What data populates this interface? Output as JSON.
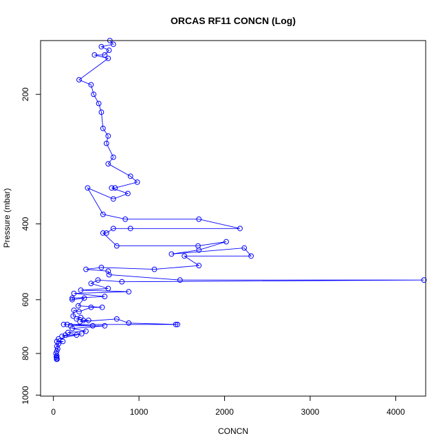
{
  "chart_data": {
    "type": "line",
    "title": "ORCAS RF11 CONCN (Log)",
    "xlabel": "CONCN",
    "ylabel": "Pressure (mbar)",
    "xlim": [
      -150,
      4350
    ],
    "ylim": [
      1005,
      150
    ],
    "y_reversed": true,
    "y_scale": "log",
    "x_ticks": [
      0,
      1000,
      2000,
      3000,
      4000
    ],
    "y_ticks": [
      200,
      400,
      600,
      800,
      1000
    ],
    "x_tick_labels": [
      "0",
      "1000",
      "2000",
      "3000",
      "4000"
    ],
    "y_tick_labels": [
      "200",
      "400",
      "600",
      "800",
      "1000"
    ],
    "grid": false,
    "legend": "none",
    "marker": "open-circle",
    "series": [
      {
        "values": [
          [
            660,
            150
          ],
          [
            700,
            153
          ],
          [
            560,
            155
          ],
          [
            650,
            158
          ],
          [
            600,
            162
          ],
          [
            480,
            162
          ],
          [
            640,
            165
          ],
          [
            300,
            185
          ],
          [
            440,
            190
          ],
          [
            470,
            200
          ],
          [
            530,
            210
          ],
          [
            560,
            220
          ],
          [
            580,
            240
          ],
          [
            640,
            250
          ],
          [
            620,
            260
          ],
          [
            700,
            280
          ],
          [
            640,
            290
          ],
          [
            900,
            310
          ],
          [
            980,
            320
          ],
          [
            720,
            330
          ],
          [
            680,
            330
          ],
          [
            870,
            340
          ],
          [
            700,
            350
          ],
          [
            400,
            330
          ],
          [
            580,
            380
          ],
          [
            840,
            390
          ],
          [
            1700,
            390
          ],
          [
            2180,
            410
          ],
          [
            900,
            410
          ],
          [
            700,
            410
          ],
          [
            620,
            420
          ],
          [
            580,
            420
          ],
          [
            740,
            450
          ],
          [
            1690,
            450
          ],
          [
            2020,
            440
          ],
          [
            1700,
            460
          ],
          [
            1380,
            470
          ],
          [
            2230,
            455
          ],
          [
            2310,
            475
          ],
          [
            1530,
            475
          ],
          [
            1700,
            500
          ],
          [
            1180,
            510
          ],
          [
            560,
            505
          ],
          [
            380,
            510
          ],
          [
            640,
            515
          ],
          [
            650,
            525
          ],
          [
            1480,
            540
          ],
          [
            4330,
            540
          ],
          [
            800,
            545
          ],
          [
            520,
            540
          ],
          [
            440,
            550
          ],
          [
            640,
            565
          ],
          [
            320,
            570
          ],
          [
            880,
            575
          ],
          [
            240,
            580
          ],
          [
            600,
            590
          ],
          [
            220,
            595
          ],
          [
            220,
            600
          ],
          [
            360,
            595
          ],
          [
            290,
            620
          ],
          [
            570,
            625
          ],
          [
            440,
            625
          ],
          [
            300,
            640
          ],
          [
            240,
            635
          ],
          [
            230,
            655
          ],
          [
            320,
            660
          ],
          [
            270,
            665
          ],
          [
            350,
            670
          ],
          [
            410,
            670
          ],
          [
            310,
            675
          ],
          [
            740,
            665
          ],
          [
            880,
            680
          ],
          [
            1450,
            685
          ],
          [
            1430,
            685
          ],
          [
            120,
            685
          ],
          [
            160,
            685
          ],
          [
            460,
            690
          ],
          [
            200,
            690
          ],
          [
            600,
            690
          ],
          [
            220,
            700
          ],
          [
            380,
            710
          ],
          [
            170,
            715
          ],
          [
            270,
            725
          ],
          [
            140,
            725
          ],
          [
            100,
            730
          ],
          [
            330,
            720
          ],
          [
            60,
            740
          ],
          [
            40,
            750
          ],
          [
            110,
            750
          ],
          [
            60,
            760
          ],
          [
            40,
            770
          ],
          [
            50,
            780
          ],
          [
            40,
            790
          ],
          [
            30,
            800
          ],
          [
            40,
            810
          ],
          [
            35,
            815
          ],
          [
            40,
            820
          ],
          [
            38,
            825
          ],
          [
            42,
            825
          ]
        ]
      }
    ]
  }
}
